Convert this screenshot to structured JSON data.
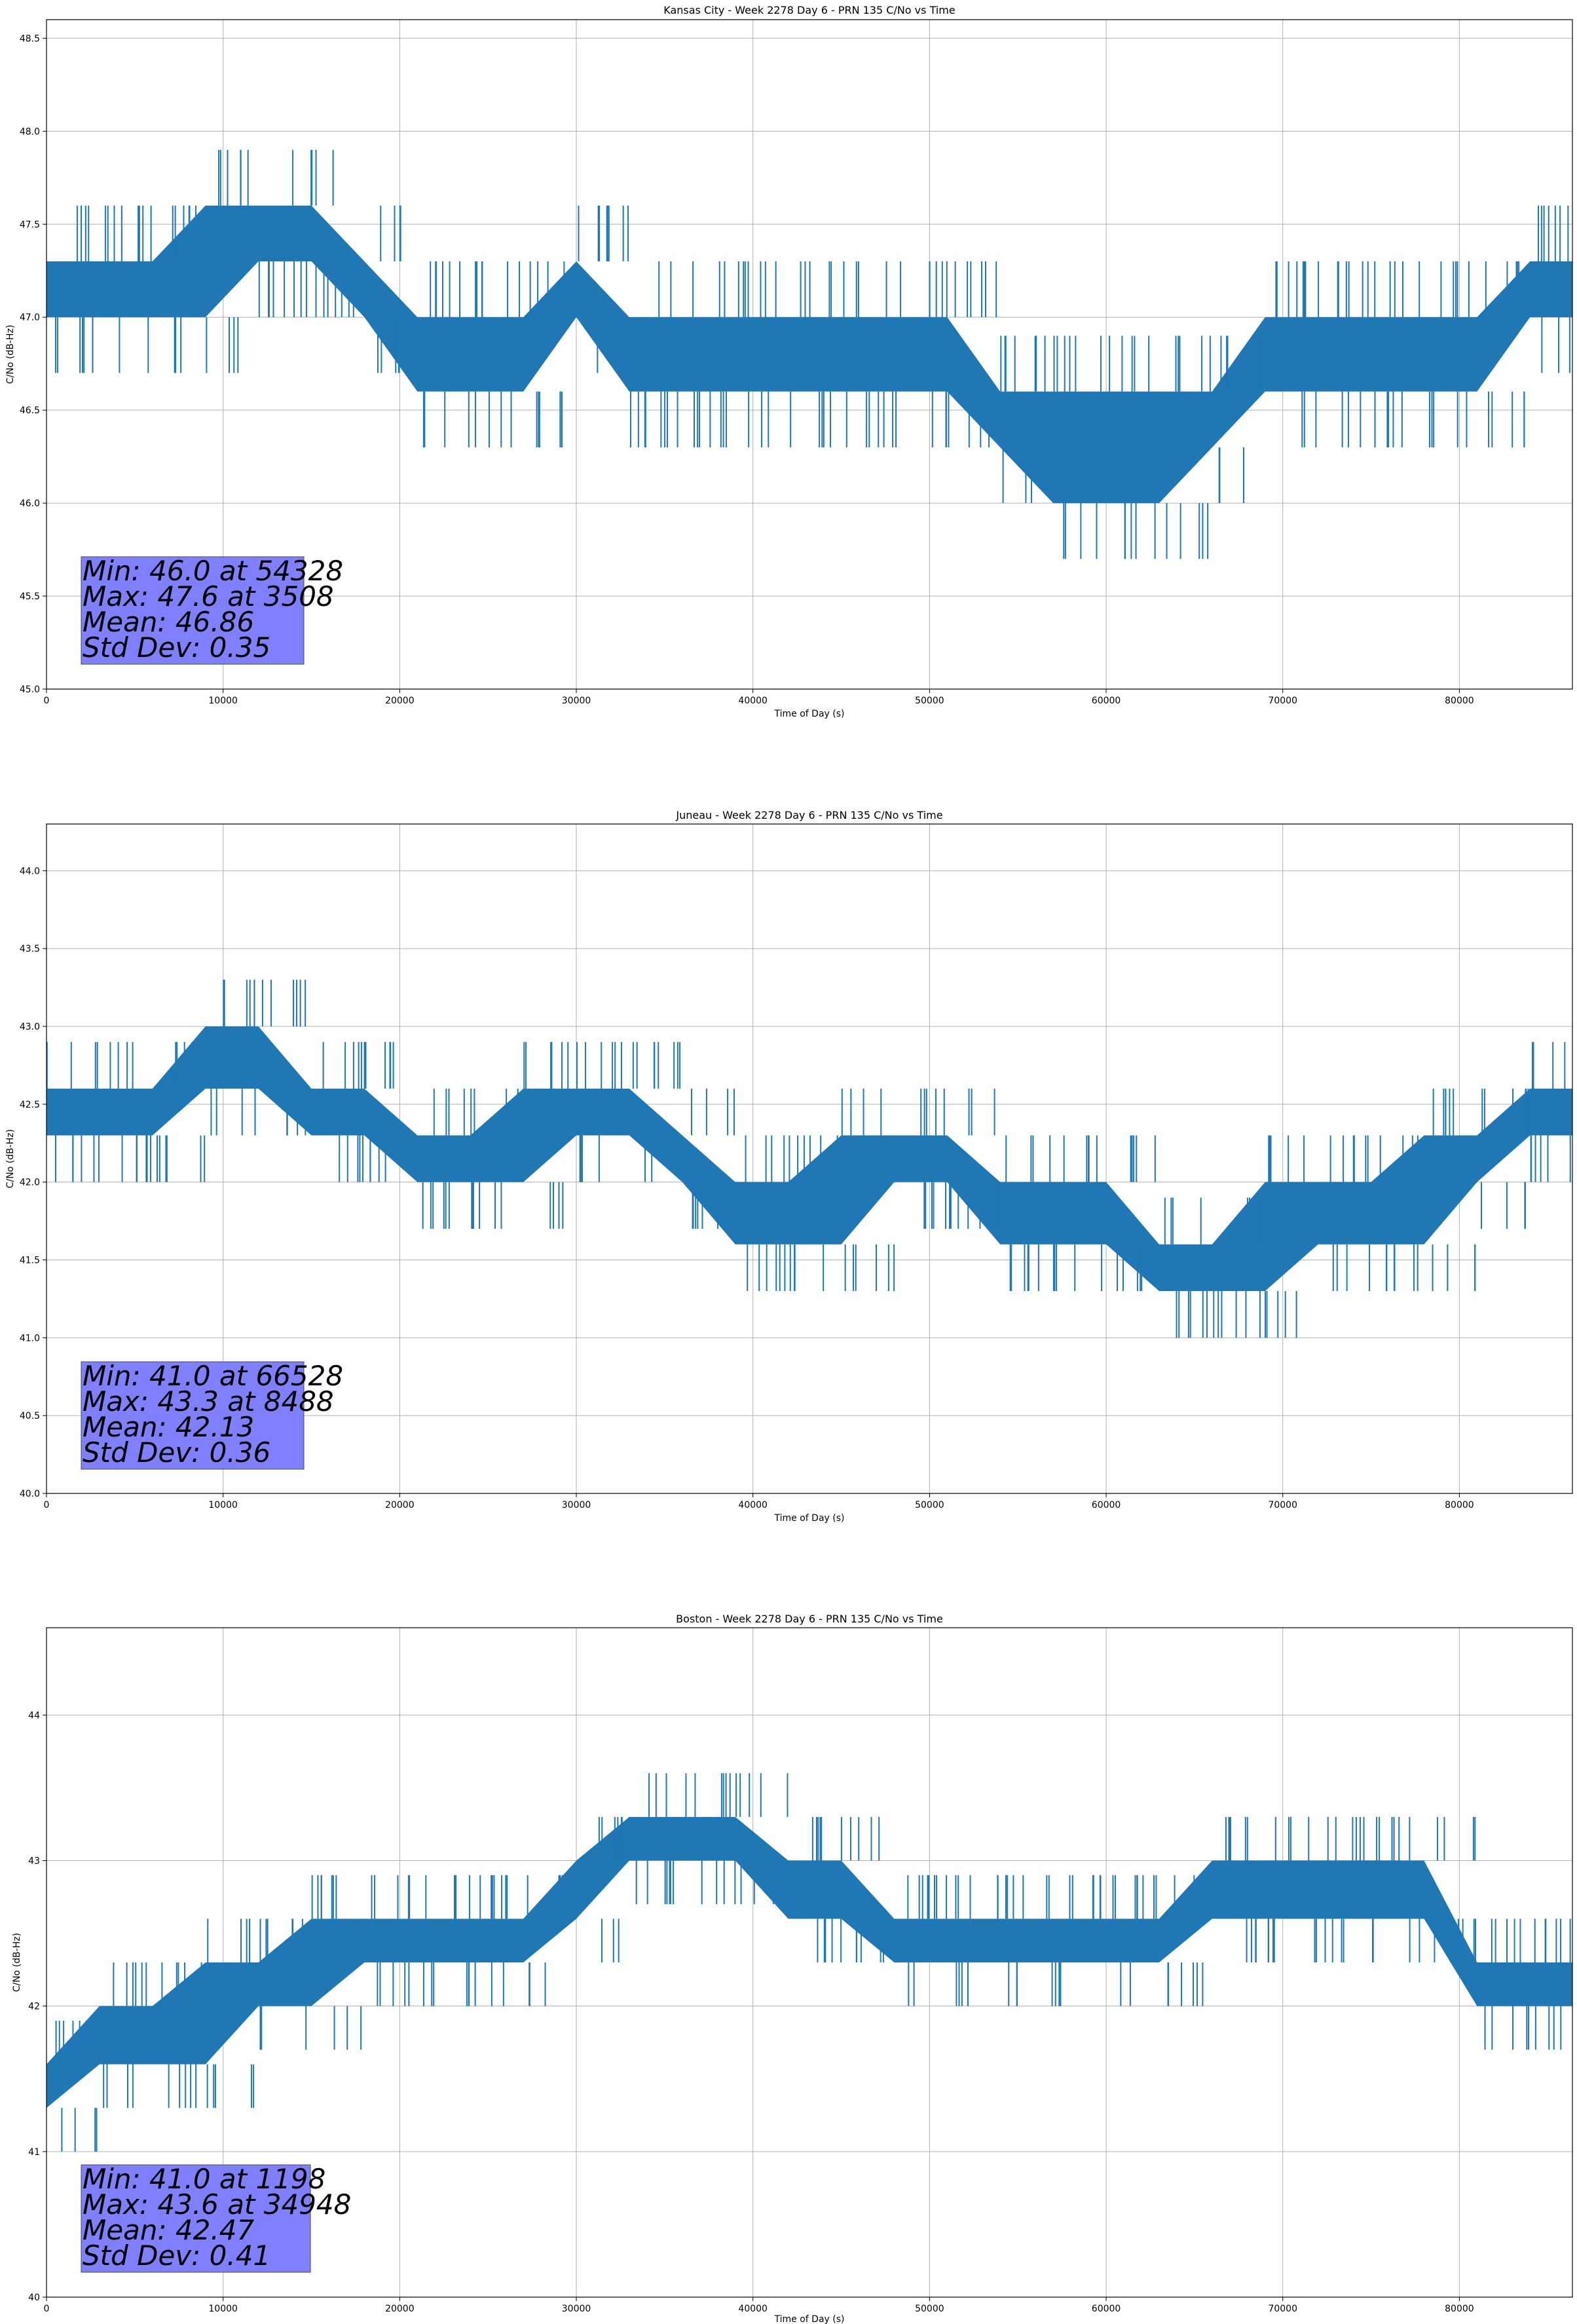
{
  "chart_data": [
    {
      "type": "line",
      "title": "Kansas City - Week 2278 Day 6 - PRN 135 C/No vs Time",
      "xlabel": "Time of Day (s)",
      "ylabel": "C/No (dB-Hz)",
      "xlim": [
        0,
        86400
      ],
      "ylim": [
        45.0,
        48.6
      ],
      "grid": true,
      "line_color": "#1f77b4",
      "x_ticks": [
        0,
        10000,
        20000,
        30000,
        40000,
        50000,
        60000,
        70000,
        80000
      ],
      "y_ticks": [
        45.0,
        45.5,
        46.0,
        46.5,
        47.0,
        47.5,
        48.0,
        48.5
      ],
      "y_tick_labels": [
        "45.0",
        "45.5",
        "46.0",
        "46.5",
        "47.0",
        "47.5",
        "48.0",
        "48.5"
      ],
      "series": [
        {
          "x": [
            0,
            3000,
            6000,
            9000,
            12000,
            15000,
            18000,
            21000,
            24000,
            27000,
            30000,
            33000,
            36000,
            39000,
            42000,
            45000,
            48000,
            51000,
            54000,
            57000,
            60000,
            63000,
            66000,
            69000,
            72000,
            75000,
            78000,
            81000,
            84000,
            86400
          ],
          "low": [
            47.0,
            47.0,
            47.0,
            47.0,
            47.3,
            47.3,
            47.0,
            46.6,
            46.6,
            46.6,
            47.0,
            46.6,
            46.6,
            46.6,
            46.6,
            46.6,
            46.6,
            46.6,
            46.3,
            46.0,
            46.0,
            46.0,
            46.3,
            46.6,
            46.6,
            46.6,
            46.6,
            46.6,
            47.0,
            47.0
          ],
          "high": [
            47.3,
            47.3,
            47.3,
            47.6,
            47.6,
            47.6,
            47.3,
            47.0,
            47.0,
            47.0,
            47.3,
            47.0,
            47.0,
            47.0,
            47.0,
            47.0,
            47.0,
            47.0,
            46.6,
            46.6,
            46.6,
            46.6,
            46.6,
            47.0,
            47.0,
            47.0,
            47.0,
            47.0,
            47.3,
            47.3
          ]
        }
      ],
      "stats": {
        "min": "Min: 46.0 at 54328",
        "max": "Max: 47.6 at 3508",
        "mean": "Mean: 46.86",
        "std": "Std Dev: 0.35"
      }
    },
    {
      "type": "line",
      "title": "Juneau - Week 2278 Day 6 - PRN 135 C/No vs Time",
      "xlabel": "Time of Day (s)",
      "ylabel": "C/No (dB-Hz)",
      "xlim": [
        0,
        86400
      ],
      "ylim": [
        40.0,
        44.3
      ],
      "grid": true,
      "line_color": "#1f77b4",
      "x_ticks": [
        0,
        10000,
        20000,
        30000,
        40000,
        50000,
        60000,
        70000,
        80000
      ],
      "y_ticks": [
        40.0,
        40.5,
        41.0,
        41.5,
        42.0,
        42.5,
        43.0,
        43.5,
        44.0
      ],
      "y_tick_labels": [
        "40.0",
        "40.5",
        "41.0",
        "41.5",
        "42.0",
        "42.5",
        "43.0",
        "43.5",
        "44.0"
      ],
      "series": [
        {
          "x": [
            0,
            3000,
            6000,
            9000,
            12000,
            15000,
            18000,
            21000,
            24000,
            27000,
            30000,
            33000,
            36000,
            39000,
            42000,
            45000,
            48000,
            51000,
            54000,
            57000,
            60000,
            63000,
            66000,
            69000,
            72000,
            75000,
            78000,
            81000,
            84000,
            86400
          ],
          "low": [
            42.3,
            42.3,
            42.3,
            42.6,
            42.6,
            42.3,
            42.3,
            42.0,
            42.0,
            42.0,
            42.3,
            42.3,
            42.0,
            41.6,
            41.6,
            41.6,
            42.0,
            42.0,
            41.6,
            41.6,
            41.6,
            41.3,
            41.3,
            41.3,
            41.6,
            41.6,
            41.6,
            42.0,
            42.3,
            42.3
          ],
          "high": [
            42.6,
            42.6,
            42.6,
            43.0,
            43.0,
            42.6,
            42.6,
            42.3,
            42.3,
            42.6,
            42.6,
            42.6,
            42.3,
            42.0,
            42.0,
            42.3,
            42.3,
            42.3,
            42.0,
            42.0,
            42.0,
            41.6,
            41.6,
            42.0,
            42.0,
            42.0,
            42.3,
            42.3,
            42.6,
            42.6
          ]
        }
      ],
      "stats": {
        "min": "Min: 41.0 at 66528",
        "max": "Max: 43.3 at 8488",
        "mean": "Mean: 42.13",
        "std": "Std Dev: 0.36"
      }
    },
    {
      "type": "line",
      "title": "Boston - Week 2278 Day 6 - PRN 135 C/No vs Time",
      "xlabel": "Time of Day (s)",
      "ylabel": "C/No (dB-Hz)",
      "xlim": [
        0,
        86400
      ],
      "ylim": [
        40.0,
        44.6
      ],
      "grid": true,
      "line_color": "#1f77b4",
      "x_ticks": [
        0,
        10000,
        20000,
        30000,
        40000,
        50000,
        60000,
        70000,
        80000
      ],
      "y_ticks": [
        40,
        41,
        42,
        43,
        44
      ],
      "y_tick_labels": [
        "40",
        "41",
        "42",
        "43",
        "44"
      ],
      "series": [
        {
          "x": [
            0,
            3000,
            6000,
            9000,
            12000,
            15000,
            18000,
            21000,
            24000,
            27000,
            30000,
            33000,
            36000,
            39000,
            42000,
            45000,
            48000,
            51000,
            54000,
            57000,
            60000,
            63000,
            66000,
            69000,
            72000,
            75000,
            78000,
            81000,
            84000,
            86400
          ],
          "low": [
            41.3,
            41.6,
            41.6,
            41.6,
            42.0,
            42.0,
            42.3,
            42.3,
            42.3,
            42.3,
            42.6,
            43.0,
            43.0,
            43.0,
            42.6,
            42.6,
            42.3,
            42.3,
            42.3,
            42.3,
            42.3,
            42.3,
            42.6,
            42.6,
            42.6,
            42.6,
            42.6,
            42.0,
            42.0,
            42.0
          ],
          "high": [
            41.6,
            42.0,
            42.0,
            42.3,
            42.3,
            42.6,
            42.6,
            42.6,
            42.6,
            42.6,
            43.0,
            43.3,
            43.3,
            43.3,
            43.0,
            43.0,
            42.6,
            42.6,
            42.6,
            42.6,
            42.6,
            42.6,
            43.0,
            43.0,
            43.0,
            43.0,
            43.0,
            42.3,
            42.3,
            42.3
          ]
        }
      ],
      "stats": {
        "min": "Min: 41.0 at 1198",
        "max": "Max: 43.6 at 34948",
        "mean": "Mean: 42.47",
        "std": "Std Dev: 0.41"
      }
    }
  ]
}
